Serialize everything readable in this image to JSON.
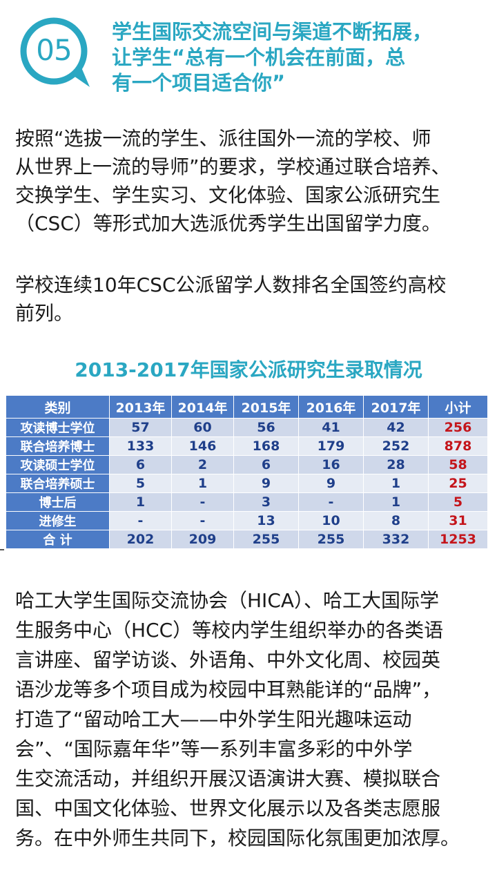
{
  "header": {
    "badge_number": "05",
    "headline_lines": [
      "学生国际交流空间与渠道不断拓展，",
      "让学生“总有一个机会在前面，总",
      "有一个项目适合你”"
    ]
  },
  "intro": {
    "lines": [
      "按照“选拔一流的学生、派往国外一流的学校、师",
      "从世界上一流的导师”的要求，学校通过联合培养、",
      "交换学生、学生实习、文化体验、国家公派研究生",
      "（CSC）等形式加大选派优秀学生出国留学力度。"
    ]
  },
  "ranking": {
    "lines": [
      "学校连续10年CSC公派留学人数排名全国签约高校",
      "前列。"
    ]
  },
  "table": {
    "title": "2013-2017年国家公派研究生录取情况",
    "headers": [
      "类别",
      "2013年",
      "2014年",
      "2015年",
      "2016年",
      "2017年",
      "小计"
    ],
    "rows": [
      [
        "攻读博士学位",
        "57",
        "60",
        "56",
        "41",
        "42",
        "256"
      ],
      [
        "联合培养博士",
        "133",
        "146",
        "168",
        "179",
        "252",
        "878"
      ],
      [
        "攻读硕士学位",
        "6",
        "2",
        "6",
        "16",
        "28",
        "58"
      ],
      [
        "联合培养硕士",
        "5",
        "1",
        "9",
        "9",
        "1",
        "25"
      ],
      [
        "博士后",
        "1",
        "-",
        "3",
        "-",
        "1",
        "5"
      ],
      [
        "进修生",
        "-",
        "-",
        "13",
        "10",
        "8",
        "31"
      ],
      [
        "合  计",
        "202",
        "209",
        "255",
        "255",
        "332",
        "1253"
      ]
    ]
  },
  "activities": {
    "lines": [
      "哈工大学生国际交流协会（HICA）、哈工大国际学",
      "生服务中心（HCC）等校内学生组织举办的各类语",
      "言讲座、留学访谈、外语角、中外文化周、校园英",
      "语沙龙等多个项目成为校园中耳熟能详的“品牌”，",
      "打造了“留动哈工大——中外学生阳光趣味运动",
      "会”、“国际嘉年华”等一系列丰富多彩的中外学",
      "生交流活动，并组织开展汉语演讲大赛、模拟联合",
      "国、中国文化体验、世界文化展示以及各类志愿服",
      "务。在中外师生共同下，校园国际化氛围更加浓厚。"
    ]
  },
  "colors": {
    "accent": "#2aa7c2",
    "table_header": "#4c7bc6",
    "table_row_light": "#cfd8ea",
    "table_value": "#1f3f8a",
    "table_total": "#c4141a"
  }
}
